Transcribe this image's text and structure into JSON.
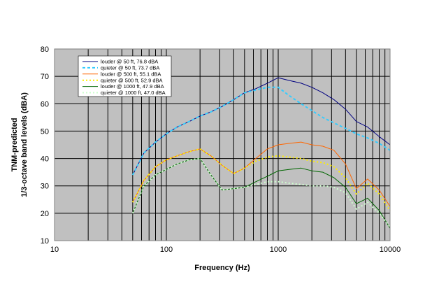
{
  "chart_data": {
    "type": "line",
    "title": "",
    "xlabel": "Frequency (Hz)",
    "ylabel_lines": [
      "TNM-predicted",
      "1/3-octave band levels (dBA)"
    ],
    "xscale": "log",
    "xlim": [
      10,
      10000
    ],
    "ylim": [
      10,
      80
    ],
    "x_ticks": [
      "10",
      "100",
      "1000",
      "10000"
    ],
    "y_ticks": [
      "10",
      "20",
      "30",
      "40",
      "50",
      "60",
      "70",
      "80"
    ],
    "grid": true,
    "legend_position": "top-left",
    "x": [
      50,
      63,
      80,
      100,
      125,
      160,
      200,
      250,
      315,
      400,
      500,
      630,
      800,
      1000,
      1250,
      1600,
      2000,
      2500,
      3150,
      4000,
      5000,
      6300,
      8000,
      10000
    ],
    "series": [
      {
        "name": "louder @   50 ft, 76.8 dBA",
        "color": "#000080",
        "dash": "solid",
        "values": [
          34,
          42,
          46,
          49,
          51.5,
          53.5,
          55.5,
          57,
          59,
          61.5,
          64,
          65.5,
          67.5,
          69.5,
          68.5,
          67.5,
          66,
          64,
          61.5,
          58,
          53.5,
          51.5,
          48,
          45
        ]
      },
      {
        "name": "quieter @   50 ft, 73.7 dBA",
        "color": "#33ccff",
        "dash": "dash",
        "values": [
          34,
          42,
          46,
          49,
          51.5,
          53.5,
          55.5,
          57,
          59,
          61.5,
          64,
          65,
          66,
          66,
          63,
          60,
          57.5,
          55,
          53,
          51,
          49,
          47.5,
          45.5,
          43
        ]
      },
      {
        "name": "louder @  500 ft, 55.1 dBA",
        "color": "#ff6600",
        "dash": "solid",
        "values": [
          24,
          32,
          37,
          39.5,
          41,
          42.5,
          43.5,
          41,
          37.5,
          34.5,
          36.5,
          40,
          43.5,
          45,
          45.5,
          46,
          45,
          44.5,
          43,
          38,
          29,
          32.5,
          28.5,
          22.5
        ]
      },
      {
        "name": "quieter @  500 ft, 52.9 dBA",
        "color": "#ffee00",
        "dash": "dot",
        "values": [
          24,
          32,
          37,
          39.5,
          41,
          42.5,
          43.5,
          41,
          37.5,
          34.5,
          36.5,
          39,
          40.5,
          41,
          40.5,
          40,
          39,
          38.5,
          37,
          33,
          27,
          31,
          27,
          21
        ]
      },
      {
        "name": "louder @ 1000 ft, 47.9 dBA",
        "color": "#006600",
        "dash": "solid",
        "values": [
          20,
          30,
          34,
          36,
          38,
          39.5,
          40,
          34,
          28.5,
          29,
          29.5,
          31.5,
          33.5,
          35.5,
          36,
          36.5,
          35.5,
          35,
          33,
          29.5,
          23.5,
          25.5,
          21,
          14.5
        ]
      },
      {
        "name": "quieter @ 1000 ft, 47.0 dBA",
        "color": "#ccffcc",
        "dash": "dot",
        "values": [
          20,
          30,
          34,
          36,
          38,
          39.5,
          40,
          34,
          28.5,
          29,
          29.5,
          30.5,
          31.5,
          31.5,
          31,
          30.5,
          30,
          30,
          29.5,
          27.5,
          21.5,
          24,
          20,
          15
        ]
      }
    ]
  }
}
